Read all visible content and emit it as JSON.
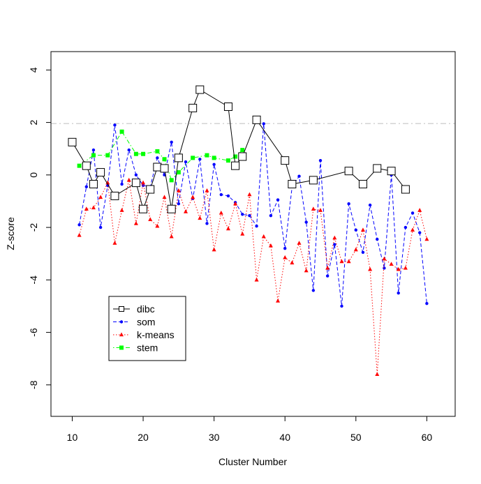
{
  "chart_data": {
    "type": "line",
    "title": "",
    "xlabel": "Cluster Number",
    "ylabel": "Z-score",
    "xlim": [
      7,
      64
    ],
    "ylim": [
      -9.2,
      4.7
    ],
    "xticks": [
      10,
      20,
      30,
      40,
      50,
      60
    ],
    "yticks": [
      4,
      2,
      0,
      -2,
      -4,
      -6,
      -8
    ],
    "reference_line": {
      "y": 1.96,
      "color": "#bebebe",
      "style": "dash-dot"
    },
    "legend_position": "bottom-left",
    "series": [
      {
        "name": "dibc",
        "color": "#000000",
        "line": "solid",
        "marker": "open-square",
        "x": [
          10,
          12,
          13,
          14,
          16,
          19,
          20,
          21,
          22,
          23,
          24,
          25,
          27,
          28,
          32,
          33,
          34,
          36,
          40,
          41,
          44,
          49,
          51,
          53,
          55,
          57
        ],
        "y": [
          1.25,
          0.35,
          -0.35,
          0.1,
          -0.8,
          -0.3,
          -1.3,
          -0.55,
          0.3,
          0.25,
          -1.3,
          0.65,
          2.55,
          3.25,
          2.6,
          0.35,
          0.7,
          2.1,
          0.55,
          -0.35,
          -0.2,
          0.15,
          -0.35,
          0.25,
          0.15,
          -0.55
        ]
      },
      {
        "name": "som",
        "color": "#0000ff",
        "line": "dashed",
        "marker": "filled-circle",
        "x": [
          11,
          12,
          13,
          14,
          15,
          16,
          17,
          18,
          19,
          20,
          21,
          22,
          23,
          24,
          25,
          26,
          27,
          28,
          29,
          30,
          31,
          32,
          33,
          34,
          35,
          36,
          37,
          38,
          39,
          40,
          41,
          42,
          43,
          44,
          45,
          46,
          47,
          48,
          49,
          50,
          51,
          52,
          53,
          54,
          55,
          56,
          57,
          58,
          59,
          60
        ],
        "y": [
          -1.9,
          -0.45,
          0.95,
          -2.0,
          -0.4,
          1.9,
          -0.35,
          0.95,
          0.0,
          -0.4,
          -0.45,
          0.65,
          0.0,
          1.25,
          -1.1,
          0.5,
          -0.9,
          0.6,
          -1.85,
          0.4,
          -0.75,
          -0.8,
          -1.05,
          -1.5,
          -1.55,
          -1.95,
          1.95,
          -1.55,
          -0.95,
          -2.8,
          -0.45,
          -0.05,
          -1.8,
          -4.4,
          0.55,
          -3.85,
          -2.65,
          -5.0,
          -1.1,
          -2.1,
          -2.95,
          -1.15,
          -2.45,
          -3.55,
          0.0,
          -4.5,
          -2.0,
          -1.45,
          -2.2,
          -4.9
        ]
      },
      {
        "name": "k-means",
        "color": "#ff0000",
        "line": "dotted",
        "marker": "filled-triangle",
        "x": [
          11,
          12,
          13,
          14,
          15,
          16,
          17,
          18,
          19,
          20,
          21,
          22,
          23,
          24,
          25,
          26,
          27,
          28,
          29,
          30,
          31,
          32,
          33,
          34,
          35,
          36,
          37,
          38,
          39,
          40,
          41,
          42,
          43,
          44,
          45,
          46,
          47,
          48,
          49,
          50,
          51,
          52,
          53,
          54,
          55,
          56,
          57,
          58,
          59,
          60
        ],
        "y": [
          -2.3,
          -1.3,
          -1.25,
          -0.85,
          -0.3,
          -2.6,
          -1.35,
          -0.2,
          -1.85,
          -0.3,
          -1.7,
          -1.95,
          -0.85,
          -2.35,
          -0.6,
          -1.4,
          -0.85,
          -1.65,
          -0.6,
          -2.85,
          -1.45,
          -2.05,
          -1.1,
          -2.25,
          -0.75,
          -4.0,
          -2.35,
          -2.7,
          -4.8,
          -3.15,
          -3.35,
          -2.6,
          -3.65,
          -1.3,
          -1.35,
          -3.55,
          -2.4,
          -3.3,
          -3.3,
          -2.85,
          -2.1,
          -3.6,
          -7.6,
          -3.2,
          -3.4,
          -3.6,
          -3.55,
          -2.1,
          -1.35,
          -2.45
        ]
      },
      {
        "name": "stem",
        "color": "#00ff00",
        "line": "dot-dash",
        "marker": "filled-square",
        "x": [
          11,
          13,
          15,
          17,
          19,
          20,
          22,
          23,
          24,
          25,
          27,
          29,
          30,
          32,
          33,
          34
        ],
        "y": [
          0.35,
          0.75,
          0.75,
          1.65,
          0.8,
          0.8,
          0.9,
          0.6,
          -0.2,
          0.1,
          0.65,
          0.75,
          0.65,
          0.55,
          0.7,
          0.95
        ]
      }
    ]
  }
}
